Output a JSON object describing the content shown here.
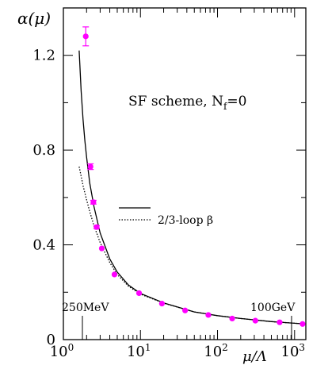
{
  "chart_data": {
    "type": "scatter",
    "title": "",
    "ylabel": "α(μ)",
    "xlabel": "μ/Λ",
    "xscale": "log",
    "xlim": [
      1,
      1400
    ],
    "ylim": [
      0,
      1.4
    ],
    "grid": false,
    "annotation": {
      "scheme": "SF scheme,  N",
      "sub": "f",
      "rest": "=0"
    },
    "legend": {
      "position": "middle-right",
      "entries": [
        {
          "style": "solid",
          "label": ""
        },
        {
          "style": "dotted",
          "label": "2/3-loop β"
        }
      ]
    },
    "markers": [
      {
        "x": 1.2,
        "label": "250MeV"
      },
      {
        "x": 1100,
        "label": "100GeV"
      }
    ],
    "points": [
      {
        "x": 1.95,
        "y": 1.28,
        "err": 0.04
      },
      {
        "x": 2.25,
        "y": 0.73,
        "err": 0.012
      },
      {
        "x": 2.45,
        "y": 0.58,
        "err": 0.008
      },
      {
        "x": 2.7,
        "y": 0.475,
        "err": 0.006
      },
      {
        "x": 3.15,
        "y": 0.385,
        "err": 0.005
      },
      {
        "x": 4.6,
        "y": 0.275,
        "err": 0.004
      },
      {
        "x": 9.6,
        "y": 0.196,
        "err": 0.003
      },
      {
        "x": 19,
        "y": 0.152,
        "err": 0.002
      },
      {
        "x": 38,
        "y": 0.123,
        "err": 0.002
      },
      {
        "x": 76,
        "y": 0.104,
        "err": 0.002
      },
      {
        "x": 155,
        "y": 0.089,
        "err": 0.002
      },
      {
        "x": 310,
        "y": 0.08,
        "err": 0.002
      },
      {
        "x": 640,
        "y": 0.073,
        "err": 0.002
      },
      {
        "x": 1270,
        "y": 0.066,
        "err": 0.002
      }
    ],
    "series": [
      {
        "style": "solid",
        "x": [
          1.6,
          1.7,
          1.8,
          1.9,
          2.0,
          2.2,
          2.5,
          3.0,
          4.0,
          5.0,
          7.0,
          10,
          20,
          50,
          100,
          200,
          500,
          1000,
          1400
        ],
        "y": [
          1.22,
          1.05,
          0.93,
          0.84,
          0.77,
          0.66,
          0.56,
          0.45,
          0.34,
          0.285,
          0.23,
          0.195,
          0.155,
          0.117,
          0.101,
          0.089,
          0.076,
          0.069,
          0.066
        ]
      },
      {
        "style": "dotted",
        "x": [
          1.6,
          1.7,
          1.8,
          2.0,
          2.2,
          2.5,
          3.0,
          4.0,
          5.0,
          7.0,
          10,
          20,
          50,
          100,
          200,
          500,
          1000,
          1400
        ],
        "y": [
          0.73,
          0.69,
          0.65,
          0.59,
          0.54,
          0.48,
          0.41,
          0.325,
          0.275,
          0.225,
          0.192,
          0.154,
          0.117,
          0.101,
          0.089,
          0.076,
          0.069,
          0.066
        ]
      }
    ],
    "xticks": [
      {
        "v": 1,
        "base": "10",
        "exp": "0"
      },
      {
        "v": 10,
        "base": "10",
        "exp": "1"
      },
      {
        "v": 100,
        "base": "10",
        "exp": "2"
      },
      {
        "v": 1000,
        "base": "10",
        "exp": "3"
      }
    ],
    "yticks": [
      {
        "v": 0,
        "label": "0"
      },
      {
        "v": 0.4,
        "label": "0.4"
      },
      {
        "v": 0.8,
        "label": "0.8"
      },
      {
        "v": 1.2,
        "label": "1.2"
      }
    ],
    "colors": {
      "points": "#ff00ff",
      "axes": "#000000"
    }
  }
}
